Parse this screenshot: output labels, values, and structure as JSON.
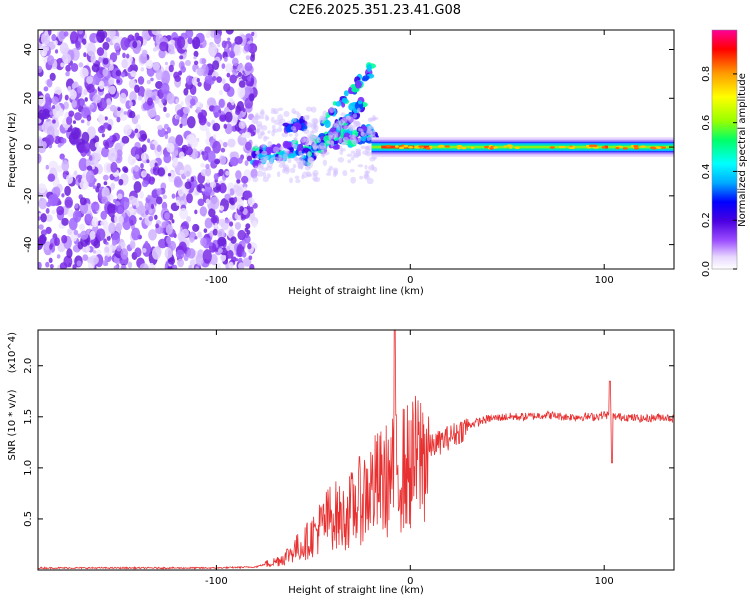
{
  "title": "C2E6.2025.351.23.41.G08",
  "chart_data": [
    {
      "type": "heatmap",
      "xlabel": "Height of straight line (km)",
      "ylabel": "Frequency (Hz)",
      "xlim": [
        -192,
        136
      ],
      "ylim": [
        -50,
        48
      ],
      "xticks": [
        -100,
        0,
        100
      ],
      "xtick_labels": [
        "-100",
        "0",
        "100"
      ],
      "yticks": [
        -40,
        -20,
        0,
        20,
        40
      ],
      "ytick_labels": [
        "-40",
        "-20",
        "0",
        "20",
        "40"
      ],
      "colorbar": {
        "label": "Normalized spectral amplitude",
        "range": [
          0,
          0.98
        ],
        "ticks": [
          0.0,
          0.2,
          0.4,
          0.6,
          0.8
        ],
        "tick_labels": [
          "0.0",
          "0.2",
          "0.4",
          "0.6",
          "0.8"
        ],
        "colors": [
          "#ffffff",
          "#e8d8ff",
          "#9b4dff",
          "#4b00e0",
          "#0000ff",
          "#00aaff",
          "#00ffff",
          "#00ff66",
          "#99ff00",
          "#ffff00",
          "#ff9900",
          "#ff0000",
          "#ff0099"
        ]
      },
      "regions": [
        {
          "x": [
            -192,
            -80
          ],
          "y": [
            -50,
            48
          ],
          "description_level": 0.12
        },
        {
          "x": [
            -80,
            -20
          ],
          "y": [
            -15,
            35
          ],
          "description_level": 0.3
        },
        {
          "x": [
            -20,
            136
          ],
          "y": [
            -2,
            2
          ],
          "description_level": 0.4
        }
      ]
    },
    {
      "type": "line",
      "xlabel": "Height of straight line (km)",
      "ylabel": "SNR (10 * v/v)",
      "y_multiplier": "(x10^4)",
      "xlim": [
        -192,
        136
      ],
      "ylim": [
        0,
        2.35
      ],
      "xticks": [
        -100,
        0,
        100
      ],
      "xtick_labels": [
        "-100",
        "0",
        "100"
      ],
      "yticks": [
        0.5,
        1.0,
        1.5,
        2.0
      ],
      "ytick_labels": [
        "0.5",
        "1.0",
        "1.5",
        "2.0"
      ],
      "color": "#e83030",
      "series": [
        {
          "x": [
            -192,
            -150,
            -100,
            -80,
            -70,
            -65,
            -60,
            -55,
            -50,
            -45,
            -40,
            -35,
            -30,
            -25,
            -20,
            -15,
            -10,
            -5,
            0,
            5,
            10,
            15,
            20,
            25,
            30,
            40,
            50,
            60,
            70,
            80,
            90,
            95,
            100,
            105,
            110,
            120,
            130,
            136
          ],
          "values": [
            0.02,
            0.02,
            0.02,
            0.03,
            0.08,
            0.12,
            0.2,
            0.25,
            0.35,
            0.45,
            0.55,
            0.5,
            0.6,
            0.7,
            0.8,
            0.85,
            0.9,
            1.0,
            1.0,
            1.1,
            1.2,
            1.25,
            1.3,
            1.35,
            1.42,
            1.48,
            1.5,
            1.5,
            1.52,
            1.5,
            1.5,
            1.5,
            1.52,
            1.5,
            1.5,
            1.48,
            1.5,
            1.48
          ]
        }
      ]
    }
  ]
}
